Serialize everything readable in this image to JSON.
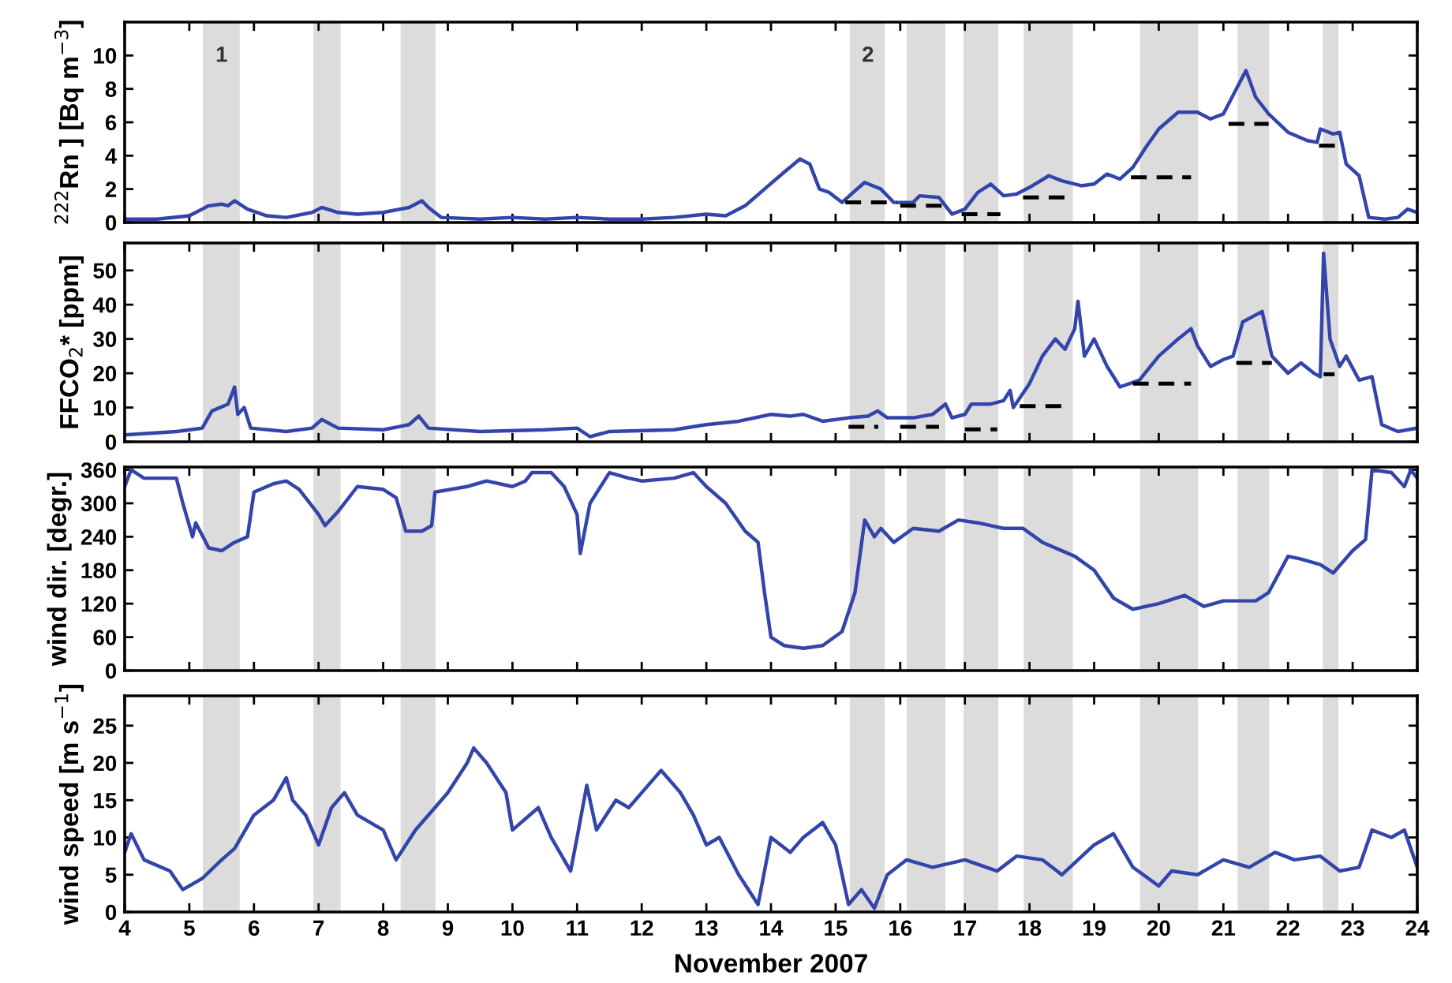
{
  "chart_data": [
    {
      "type": "line",
      "ylabel": "$^{222}$Rn ] [Bq m$^{−3}$]",
      "xlim": [
        4,
        24
      ],
      "xticks": [
        4,
        5,
        6,
        7,
        8,
        9,
        10,
        11,
        12,
        13,
        14,
        15,
        16,
        17,
        18,
        19,
        20,
        21,
        22,
        23,
        24
      ],
      "ylim": [
        0,
        12
      ],
      "yticks": [
        0,
        2,
        4,
        6,
        8,
        10
      ],
      "tick_labels": "y",
      "grid": false,
      "bands": [
        {
          "axis": "x",
          "from": 5.21,
          "to": 5.78,
          "color": "#dcdcdc"
        },
        {
          "axis": "x",
          "from": 6.92,
          "to": 7.34,
          "color": "#dcdcdc"
        },
        {
          "axis": "x",
          "from": 8.27,
          "to": 8.81,
          "color": "#dcdcdc"
        },
        {
          "axis": "x",
          "from": 15.22,
          "to": 15.76,
          "color": "#dcdcdc"
        },
        {
          "axis": "x",
          "from": 16.1,
          "to": 16.7,
          "color": "#dcdcdc"
        },
        {
          "axis": "x",
          "from": 16.98,
          "to": 17.52,
          "color": "#dcdcdc"
        },
        {
          "axis": "x",
          "from": 17.91,
          "to": 18.67,
          "color": "#dcdcdc"
        },
        {
          "axis": "x",
          "from": 19.71,
          "to": 20.61,
          "color": "#dcdcdc"
        },
        {
          "axis": "x",
          "from": 21.22,
          "to": 21.71,
          "color": "#dcdcdc"
        },
        {
          "axis": "x",
          "from": 22.54,
          "to": 22.78,
          "color": "#dcdcdc"
        }
      ],
      "annotations": [
        "1",
        "2"
      ],
      "series": [
        {
          "color": "#3344aa",
          "line_style": "solid",
          "x": [
            4.0,
            4.5,
            5.0,
            5.3,
            5.5,
            5.6,
            5.7,
            5.9,
            6.2,
            6.5,
            6.9,
            7.05,
            7.3,
            7.6,
            8.0,
            8.4,
            8.6,
            8.7,
            8.9,
            9.5,
            10,
            10.5,
            11,
            11.5,
            12,
            12.5,
            13,
            13.3,
            13.6,
            13.9,
            14.2,
            14.45,
            14.6,
            14.75,
            14.9,
            15.1,
            15.3,
            15.45,
            15.7,
            15.9,
            16.2,
            16.3,
            16.6,
            16.8,
            17.0,
            17.2,
            17.4,
            17.6,
            17.8,
            18.0,
            18.3,
            18.5,
            18.8,
            19.0,
            19.2,
            19.4,
            19.6,
            19.8,
            20.0,
            20.3,
            20.6,
            20.8,
            21.0,
            21.2,
            21.35,
            21.5,
            21.7,
            22.0,
            22.3,
            22.45,
            22.5,
            22.7,
            22.8,
            22.9,
            23.1,
            23.25,
            23.5,
            23.7,
            23.85,
            24.0
          ],
          "values": [
            0.2,
            0.2,
            0.4,
            1.0,
            1.1,
            1.0,
            1.3,
            0.8,
            0.4,
            0.3,
            0.6,
            0.9,
            0.6,
            0.5,
            0.6,
            0.9,
            1.3,
            0.9,
            0.3,
            0.2,
            0.3,
            0.2,
            0.3,
            0.2,
            0.2,
            0.3,
            0.5,
            0.4,
            1.0,
            2.0,
            3.0,
            3.8,
            3.5,
            2.0,
            1.8,
            1.2,
            1.9,
            2.4,
            2.0,
            1.2,
            1.2,
            1.6,
            1.5,
            0.5,
            0.8,
            1.8,
            2.3,
            1.6,
            1.7,
            2.1,
            2.8,
            2.5,
            2.2,
            2.3,
            2.9,
            2.6,
            3.3,
            4.5,
            5.6,
            6.6,
            6.6,
            6.2,
            6.5,
            8.0,
            9.1,
            7.5,
            6.5,
            5.4,
            4.9,
            4.8,
            5.6,
            5.3,
            5.4,
            3.5,
            2.8,
            0.3,
            0.2,
            0.3,
            0.8,
            0.6
          ]
        },
        {
          "color": "#000000",
          "line_style": "dashed",
          "x": [
            15.15,
            15.95
          ],
          "values": [
            1.2,
            1.2
          ]
        },
        {
          "color": "#000000",
          "line_style": "dashed",
          "x": [
            16.0,
            16.7
          ],
          "values": [
            1.0,
            1.0
          ]
        },
        {
          "color": "#000000",
          "line_style": "dashed",
          "x": [
            16.95,
            17.55
          ],
          "values": [
            0.5,
            0.5
          ]
        },
        {
          "color": "#000000",
          "line_style": "dashed",
          "x": [
            17.9,
            18.6
          ],
          "values": [
            1.5,
            1.5
          ]
        },
        {
          "color": "#000000",
          "line_style": "dashed",
          "x": [
            19.57,
            20.5
          ],
          "values": [
            2.7,
            2.7
          ]
        },
        {
          "color": "#000000",
          "line_style": "dashed",
          "x": [
            21.08,
            21.7
          ],
          "values": [
            5.9,
            5.9
          ]
        },
        {
          "color": "#000000",
          "line_style": "dashed",
          "x": [
            22.48,
            22.77
          ],
          "values": [
            4.6,
            4.6
          ]
        }
      ]
    },
    {
      "type": "line",
      "ylabel": "FFCO$_{2}$* [ppm]",
      "xlim": [
        4,
        24
      ],
      "xticks": [
        4,
        5,
        6,
        7,
        8,
        9,
        10,
        11,
        12,
        13,
        14,
        15,
        16,
        17,
        18,
        19,
        20,
        21,
        22,
        23,
        24
      ],
      "ylim": [
        0,
        58
      ],
      "yticks": [
        0,
        10,
        20,
        30,
        40,
        50
      ],
      "tick_labels": "y",
      "grid": false,
      "bands": [
        {
          "axis": "x",
          "from": 5.21,
          "to": 5.78,
          "color": "#dcdcdc"
        },
        {
          "axis": "x",
          "from": 6.92,
          "to": 7.34,
          "color": "#dcdcdc"
        },
        {
          "axis": "x",
          "from": 8.27,
          "to": 8.81,
          "color": "#dcdcdc"
        },
        {
          "axis": "x",
          "from": 15.22,
          "to": 15.76,
          "color": "#dcdcdc"
        },
        {
          "axis": "x",
          "from": 16.1,
          "to": 16.7,
          "color": "#dcdcdc"
        },
        {
          "axis": "x",
          "from": 16.98,
          "to": 17.52,
          "color": "#dcdcdc"
        },
        {
          "axis": "x",
          "from": 17.91,
          "to": 18.67,
          "color": "#dcdcdc"
        },
        {
          "axis": "x",
          "from": 19.71,
          "to": 20.61,
          "color": "#dcdcdc"
        },
        {
          "axis": "x",
          "from": 21.22,
          "to": 21.71,
          "color": "#dcdcdc"
        },
        {
          "axis": "x",
          "from": 22.54,
          "to": 22.78,
          "color": "#dcdcdc"
        }
      ],
      "series": [
        {
          "color": "#3344aa",
          "line_style": "solid",
          "x": [
            4.0,
            4.8,
            5.2,
            5.35,
            5.6,
            5.7,
            5.75,
            5.85,
            5.95,
            6.5,
            6.9,
            7.05,
            7.3,
            8.0,
            8.4,
            8.55,
            8.7,
            9.5,
            10.5,
            11.0,
            11.2,
            11.5,
            12.5,
            13.0,
            13.5,
            14.0,
            14.3,
            14.5,
            14.8,
            15.2,
            15.5,
            15.65,
            15.8,
            16.2,
            16.5,
            16.7,
            16.8,
            17.0,
            17.1,
            17.4,
            17.6,
            17.7,
            17.75,
            18.0,
            18.2,
            18.4,
            18.55,
            18.7,
            18.75,
            18.85,
            19.0,
            19.2,
            19.4,
            19.7,
            20.0,
            20.3,
            20.5,
            20.6,
            20.8,
            21.0,
            21.15,
            21.3,
            21.6,
            21.75,
            22.0,
            22.2,
            22.4,
            22.5,
            22.55,
            22.65,
            22.8,
            22.9,
            23.1,
            23.3,
            23.45,
            23.7,
            24.0
          ],
          "values": [
            2,
            3,
            4,
            9,
            11,
            16,
            8,
            10,
            4,
            3,
            4,
            6.5,
            4,
            3.5,
            5,
            7.5,
            4,
            3,
            3.5,
            4,
            1.5,
            3,
            3.5,
            5,
            6,
            8,
            7.5,
            8,
            6,
            7,
            7.5,
            9,
            7,
            7,
            8,
            11,
            7,
            8,
            11,
            11,
            12,
            15,
            10,
            17,
            25,
            30,
            27,
            33,
            41,
            25,
            30,
            22,
            16,
            18,
            25,
            30,
            33,
            28,
            22,
            24,
            25,
            35,
            38,
            25,
            20,
            23,
            20,
            19,
            55,
            30,
            22,
            25,
            18,
            19,
            5,
            3,
            4
          ]
        },
        {
          "color": "#000000",
          "line_style": "dashed",
          "x": [
            15.2,
            15.66
          ],
          "values": [
            4.4,
            4.4
          ]
        },
        {
          "color": "#000000",
          "line_style": "dashed",
          "x": [
            16.0,
            16.6
          ],
          "values": [
            4.4,
            4.4
          ]
        },
        {
          "color": "#000000",
          "line_style": "dashed",
          "x": [
            17.0,
            17.5
          ],
          "values": [
            3.6,
            3.6
          ]
        },
        {
          "color": "#000000",
          "line_style": "dashed",
          "x": [
            17.85,
            18.5
          ],
          "values": [
            10.4,
            10.4
          ]
        },
        {
          "color": "#000000",
          "line_style": "dashed",
          "x": [
            19.6,
            20.5
          ],
          "values": [
            17,
            17
          ]
        },
        {
          "color": "#000000",
          "line_style": "dashed",
          "x": [
            21.2,
            21.75
          ],
          "values": [
            23,
            23
          ]
        },
        {
          "color": "#000000",
          "line_style": "dashed",
          "x": [
            22.55,
            22.72
          ],
          "values": [
            19.7,
            19.7
          ]
        }
      ]
    },
    {
      "type": "line",
      "ylabel": "wind dir. [degr.]",
      "xlim": [
        4,
        24
      ],
      "xticks": [
        4,
        5,
        6,
        7,
        8,
        9,
        10,
        11,
        12,
        13,
        14,
        15,
        16,
        17,
        18,
        19,
        20,
        21,
        22,
        23,
        24
      ],
      "ylim": [
        0,
        365
      ],
      "yticks": [
        0,
        60,
        120,
        180,
        240,
        300,
        360
      ],
      "tick_labels": "y",
      "grid": false,
      "bands": [
        {
          "axis": "x",
          "from": 5.21,
          "to": 5.78,
          "color": "#dcdcdc"
        },
        {
          "axis": "x",
          "from": 6.92,
          "to": 7.34,
          "color": "#dcdcdc"
        },
        {
          "axis": "x",
          "from": 8.27,
          "to": 8.81,
          "color": "#dcdcdc"
        },
        {
          "axis": "x",
          "from": 15.22,
          "to": 15.76,
          "color": "#dcdcdc"
        },
        {
          "axis": "x",
          "from": 16.1,
          "to": 16.7,
          "color": "#dcdcdc"
        },
        {
          "axis": "x",
          "from": 16.98,
          "to": 17.52,
          "color": "#dcdcdc"
        },
        {
          "axis": "x",
          "from": 17.91,
          "to": 18.67,
          "color": "#dcdcdc"
        },
        {
          "axis": "x",
          "from": 19.71,
          "to": 20.61,
          "color": "#dcdcdc"
        },
        {
          "axis": "x",
          "from": 21.22,
          "to": 21.71,
          "color": "#dcdcdc"
        },
        {
          "axis": "x",
          "from": 22.54,
          "to": 22.78,
          "color": "#dcdcdc"
        }
      ],
      "series": [
        {
          "color": "#3344aa",
          "line_style": "solid",
          "x": [
            4.0,
            4.1,
            4.3,
            4.8,
            4.9,
            5.05,
            5.1,
            5.3,
            5.5,
            5.7,
            5.9,
            6.0,
            6.3,
            6.5,
            6.7,
            7.0,
            7.1,
            7.3,
            7.6,
            8.0,
            8.2,
            8.35,
            8.6,
            8.75,
            8.8,
            9.3,
            9.6,
            10.0,
            10.2,
            10.3,
            10.6,
            10.8,
            11.0,
            11.05,
            11.2,
            11.5,
            11.8,
            12.0,
            12.5,
            12.8,
            13.0,
            13.3,
            13.6,
            13.8,
            13.9,
            14.0,
            14.2,
            14.5,
            14.8,
            15.1,
            15.3,
            15.45,
            15.6,
            15.7,
            15.9,
            16.2,
            16.6,
            16.9,
            17.2,
            17.6,
            17.9,
            18.2,
            18.7,
            19.0,
            19.3,
            19.6,
            20.0,
            20.4,
            20.7,
            21.0,
            21.5,
            21.7,
            22.0,
            22.2,
            22.5,
            22.7,
            23.0,
            23.2,
            23.3,
            23.6,
            23.8,
            23.9,
            24.0
          ],
          "values": [
            330,
            360,
            345,
            345,
            300,
            240,
            265,
            220,
            215,
            230,
            240,
            320,
            335,
            340,
            325,
            280,
            260,
            285,
            330,
            325,
            310,
            250,
            250,
            260,
            320,
            330,
            340,
            330,
            340,
            355,
            355,
            330,
            280,
            210,
            300,
            355,
            345,
            340,
            345,
            355,
            330,
            300,
            250,
            230,
            140,
            60,
            45,
            40,
            45,
            70,
            140,
            270,
            240,
            255,
            230,
            255,
            250,
            270,
            265,
            255,
            255,
            230,
            205,
            180,
            130,
            110,
            120,
            135,
            115,
            125,
            125,
            140,
            205,
            200,
            190,
            175,
            215,
            235,
            360,
            355,
            330,
            360,
            345
          ]
        }
      ]
    },
    {
      "type": "line",
      "ylabel": "wind speed [m s$^{−1}$]",
      "xlabel": "November 2007",
      "xlim": [
        4,
        24
      ],
      "xticks": [
        4,
        5,
        6,
        7,
        8,
        9,
        10,
        11,
        12,
        13,
        14,
        15,
        16,
        17,
        18,
        19,
        20,
        21,
        22,
        23,
        24
      ],
      "ylim": [
        0,
        29
      ],
      "yticks": [
        0,
        5,
        10,
        15,
        20,
        25
      ],
      "grid": false,
      "bands": [
        {
          "axis": "x",
          "from": 5.21,
          "to": 5.78,
          "color": "#dcdcdc"
        },
        {
          "axis": "x",
          "from": 6.92,
          "to": 7.34,
          "color": "#dcdcdc"
        },
        {
          "axis": "x",
          "from": 8.27,
          "to": 8.81,
          "color": "#dcdcdc"
        },
        {
          "axis": "x",
          "from": 15.22,
          "to": 15.76,
          "color": "#dcdcdc"
        },
        {
          "axis": "x",
          "from": 16.1,
          "to": 16.7,
          "color": "#dcdcdc"
        },
        {
          "axis": "x",
          "from": 16.98,
          "to": 17.52,
          "color": "#dcdcdc"
        },
        {
          "axis": "x",
          "from": 17.91,
          "to": 18.67,
          "color": "#dcdcdc"
        },
        {
          "axis": "x",
          "from": 19.71,
          "to": 20.61,
          "color": "#dcdcdc"
        },
        {
          "axis": "x",
          "from": 21.22,
          "to": 21.71,
          "color": "#dcdcdc"
        },
        {
          "axis": "x",
          "from": 22.54,
          "to": 22.78,
          "color": "#dcdcdc"
        }
      ],
      "series": [
        {
          "color": "#3344aa",
          "line_style": "solid",
          "x": [
            4.0,
            4.1,
            4.3,
            4.7,
            4.9,
            5.2,
            5.5,
            5.7,
            6.0,
            6.3,
            6.5,
            6.6,
            6.8,
            7.0,
            7.2,
            7.4,
            7.6,
            8.0,
            8.2,
            8.5,
            8.8,
            9.0,
            9.3,
            9.4,
            9.6,
            9.9,
            10.0,
            10.4,
            10.6,
            10.9,
            11.0,
            11.15,
            11.3,
            11.6,
            11.8,
            12.1,
            12.3,
            12.6,
            12.8,
            13.0,
            13.2,
            13.5,
            13.8,
            14.0,
            14.3,
            14.5,
            14.8,
            15.0,
            15.2,
            15.4,
            15.6,
            15.8,
            16.1,
            16.5,
            17.0,
            17.5,
            17.8,
            18.2,
            18.5,
            19.0,
            19.3,
            19.6,
            20.0,
            20.2,
            20.6,
            21.0,
            21.4,
            21.8,
            22.1,
            22.5,
            22.8,
            23.1,
            23.3,
            23.6,
            23.8,
            24.0
          ],
          "values": [
            8,
            10.5,
            7,
            5.5,
            3,
            4.5,
            7,
            8.5,
            13,
            15,
            18,
            15,
            13,
            9,
            14,
            16,
            13,
            11,
            7,
            11,
            14,
            16,
            20,
            22,
            20,
            16,
            11,
            14,
            10,
            5.5,
            10,
            17,
            11,
            15,
            14,
            17,
            19,
            16,
            13,
            9,
            10,
            5,
            1,
            10,
            8,
            10,
            12,
            9,
            1,
            3,
            0.5,
            5,
            7,
            6,
            7,
            5.5,
            7.5,
            7,
            5,
            9,
            10.5,
            6,
            3.5,
            5.5,
            5,
            7,
            6,
            8,
            7,
            7.5,
            5.5,
            6,
            11,
            10,
            11,
            6
          ]
        }
      ]
    }
  ]
}
